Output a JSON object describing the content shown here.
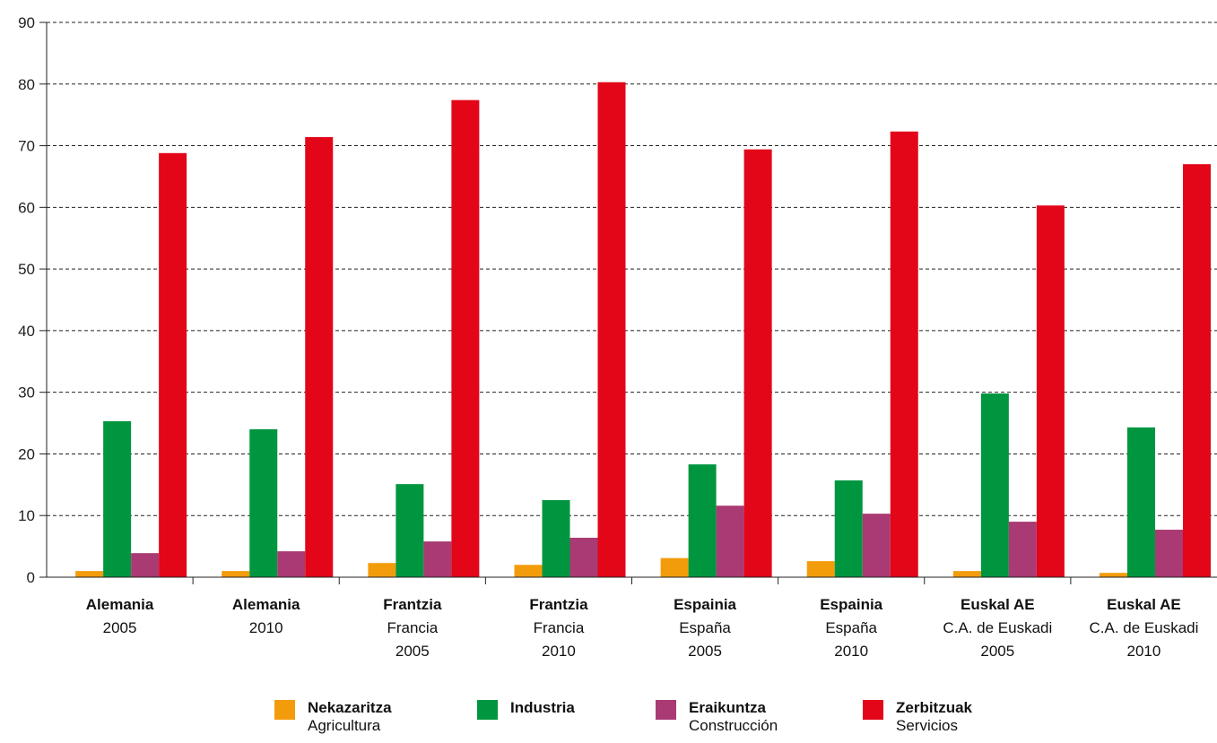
{
  "chart_data": {
    "type": "bar",
    "ylim": [
      0,
      90
    ],
    "yticks": [
      0,
      10,
      20,
      30,
      40,
      50,
      60,
      70,
      80,
      90
    ],
    "grid": true,
    "legend_position": "bottom",
    "categories": [
      {
        "label1": "Alemania",
        "label2": "2005",
        "label3": ""
      },
      {
        "label1": "Alemania",
        "label2": "2010",
        "label3": ""
      },
      {
        "label1": "Frantzia",
        "label2": "Francia",
        "label3": "2005"
      },
      {
        "label1": "Frantzia",
        "label2": "Francia",
        "label3": "2010"
      },
      {
        "label1": "Espainia",
        "label2": "España",
        "label3": "2005"
      },
      {
        "label1": "Espainia",
        "label2": "España",
        "label3": "2010"
      },
      {
        "label1": "Euskal AE",
        "label2": "C.A. de Euskadi",
        "label3": "2005"
      },
      {
        "label1": "Euskal AE",
        "label2": "C.A. de Euskadi",
        "label3": "2010"
      }
    ],
    "series": [
      {
        "name": "Nekazaritza",
        "name_es": "Agricultura",
        "color": "#f39c0b",
        "values": [
          1.0,
          1.0,
          2.3,
          2.0,
          3.1,
          2.6,
          1.0,
          0.7
        ]
      },
      {
        "name": "Industria",
        "name_es": "",
        "color": "#00963f",
        "values": [
          25.3,
          24.0,
          15.1,
          12.5,
          18.3,
          15.7,
          29.8,
          24.3
        ]
      },
      {
        "name": "Eraikuntza",
        "name_es": "Construcción",
        "color": "#a93a73",
        "values": [
          3.9,
          4.2,
          5.8,
          6.4,
          11.6,
          10.3,
          9.0,
          7.7
        ]
      },
      {
        "name": "Zerbitzuak",
        "name_es": "Servicios",
        "color": "#e30518",
        "values": [
          68.8,
          71.4,
          77.4,
          80.3,
          69.4,
          72.3,
          60.3,
          67.0
        ]
      }
    ]
  }
}
